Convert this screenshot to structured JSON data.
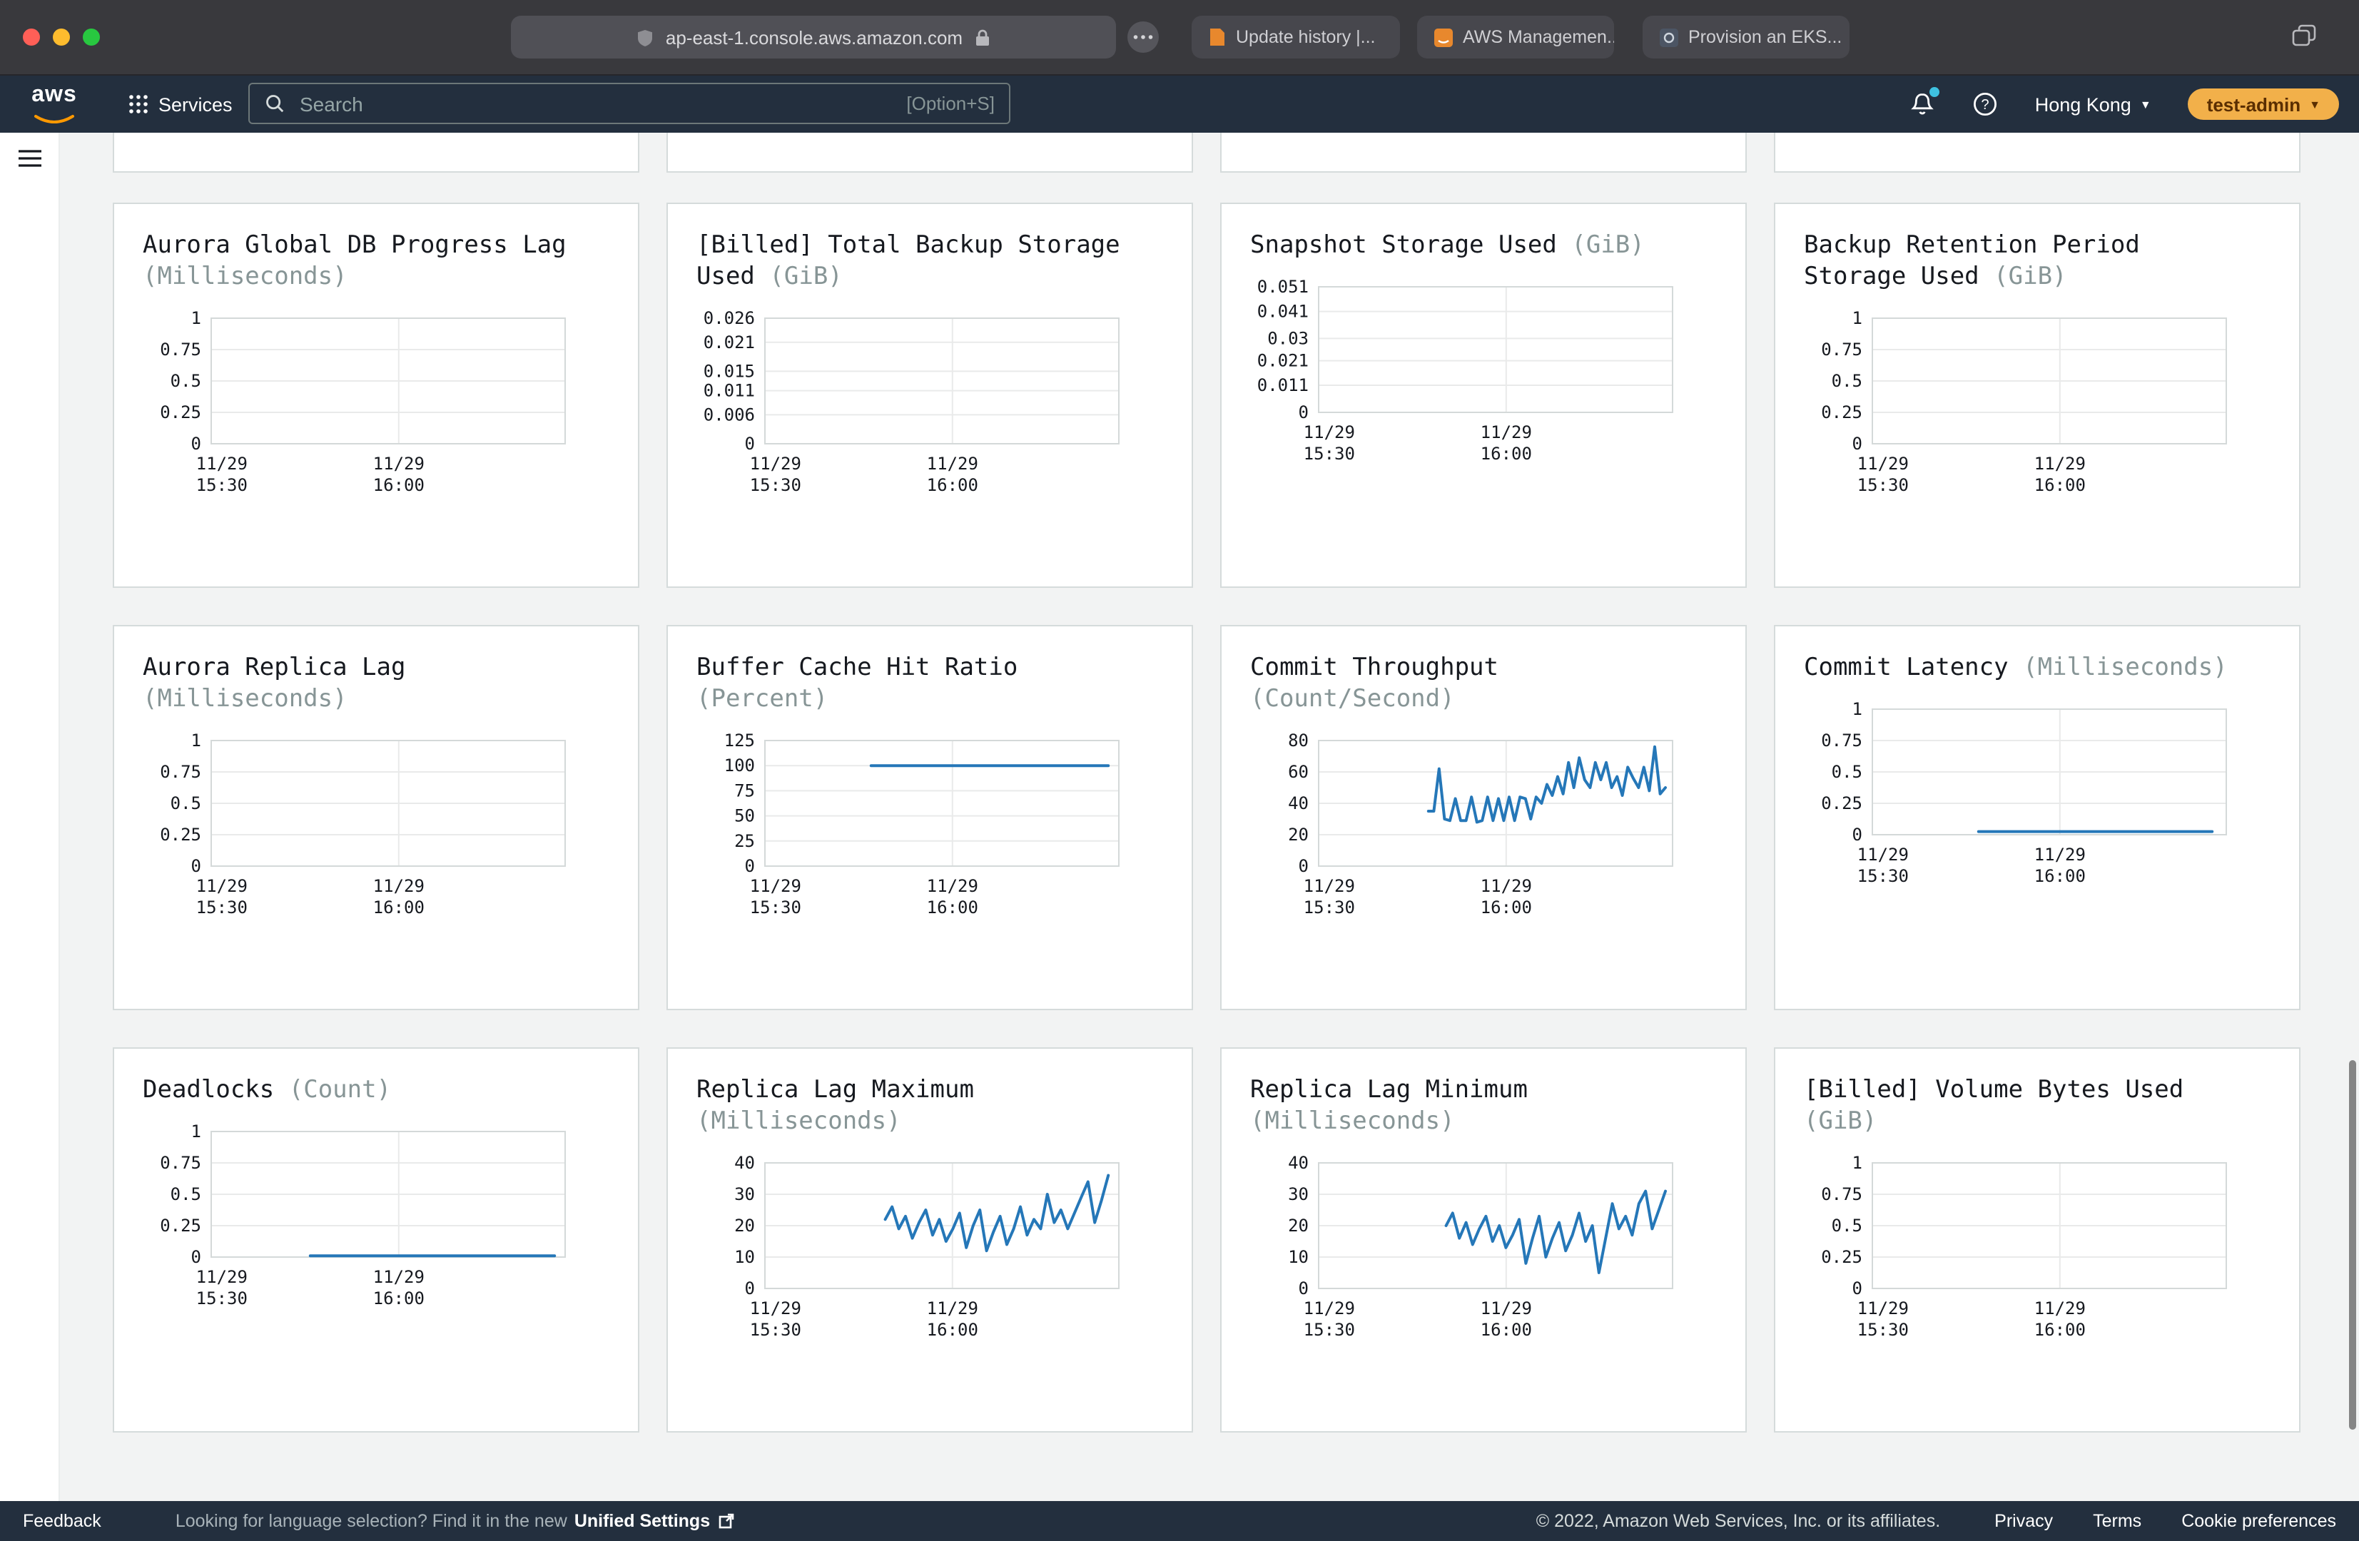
{
  "browser": {
    "url": "ap-east-1.console.aws.amazon.com",
    "tabs": [
      {
        "label": "Update history |..."
      },
      {
        "label": "AWS Managemen..."
      },
      {
        "label": "Provision an EKS..."
      }
    ]
  },
  "header": {
    "logo": "aws",
    "services_label": "Services",
    "search_placeholder": "Search",
    "search_shortcut": "[Option+S]",
    "region": "Hong Kong",
    "account": "test-admin"
  },
  "footer": {
    "feedback_label": "Feedback",
    "language_text": "Looking for language selection? Find it in the new",
    "language_link": "Unified Settings",
    "copyright": "© 2022, Amazon Web Services, Inc. or its affiliates.",
    "links": [
      {
        "label": "Privacy"
      },
      {
        "label": "Terms"
      },
      {
        "label": "Cookie preferences"
      }
    ]
  },
  "colors": {
    "header_bg": "#232f3e",
    "page_bg": "#f2f3f3",
    "card_border": "#d5dbdb",
    "chart_line": "#2577b8",
    "grid_line": "#e9eaea",
    "plot_border": "#d4d9d9",
    "unit_color": "#879596",
    "accent_orange": "#ff9900",
    "account_pill_bg": "#f2b04a",
    "account_pill_text": "#5a2e00"
  },
  "chart_data": [
    {
      "title": "Aurora Global DB Progress Lag",
      "unit": "(Milliseconds)",
      "type": "line",
      "ylim": [
        0,
        1
      ],
      "y_ticks": [
        0,
        0.25,
        0.5,
        0.75,
        1
      ],
      "x_ticks": [
        {
          "pos": 0.03,
          "lines": [
            "11/29",
            "15:30"
          ]
        },
        {
          "pos": 0.53,
          "lines": [
            "11/29",
            "16:00"
          ]
        }
      ],
      "series": []
    },
    {
      "title": "[Billed] Total Backup Storage Used",
      "unit": "(GiB)",
      "type": "line",
      "ylim": [
        0,
        0.026
      ],
      "y_ticks": [
        0,
        0.006,
        0.011,
        0.015,
        0.021,
        0.026
      ],
      "x_ticks": [
        {
          "pos": 0.03,
          "lines": [
            "11/29",
            "15:30"
          ]
        },
        {
          "pos": 0.53,
          "lines": [
            "11/29",
            "16:00"
          ]
        }
      ],
      "series": []
    },
    {
      "title": "Snapshot Storage Used",
      "unit": "(GiB)",
      "type": "line",
      "ylim": [
        0,
        0.051
      ],
      "y_ticks": [
        0,
        0.011,
        0.021,
        0.03,
        0.041,
        0.051
      ],
      "x_ticks": [
        {
          "pos": 0.03,
          "lines": [
            "11/29",
            "15:30"
          ]
        },
        {
          "pos": 0.53,
          "lines": [
            "11/29",
            "16:00"
          ]
        }
      ],
      "series": []
    },
    {
      "title": "Backup Retention Period Storage Used",
      "unit": "(GiB)",
      "type": "line",
      "ylim": [
        0,
        1
      ],
      "y_ticks": [
        0,
        0.25,
        0.5,
        0.75,
        1
      ],
      "x_ticks": [
        {
          "pos": 0.03,
          "lines": [
            "11/29",
            "15:30"
          ]
        },
        {
          "pos": 0.53,
          "lines": [
            "11/29",
            "16:00"
          ]
        }
      ],
      "series": []
    },
    {
      "title": "Aurora Replica Lag",
      "unit": "(Milliseconds)",
      "type": "line",
      "ylim": [
        0,
        1
      ],
      "y_ticks": [
        0,
        0.25,
        0.5,
        0.75,
        1
      ],
      "x_ticks": [
        {
          "pos": 0.03,
          "lines": [
            "11/29",
            "15:30"
          ]
        },
        {
          "pos": 0.53,
          "lines": [
            "11/29",
            "16:00"
          ]
        }
      ],
      "series": []
    },
    {
      "title": "Buffer Cache Hit Ratio",
      "unit": "(Percent)",
      "type": "line",
      "ylim": [
        0,
        125
      ],
      "y_ticks": [
        0,
        25,
        50,
        75,
        100,
        125
      ],
      "x_ticks": [
        {
          "pos": 0.03,
          "lines": [
            "11/29",
            "15:30"
          ]
        },
        {
          "pos": 0.53,
          "lines": [
            "11/29",
            "16:00"
          ]
        }
      ],
      "series": [
        {
          "name": "BufferCacheHitRatio",
          "span": [
            0.3,
            0.97
          ],
          "values": [
            100,
            100
          ]
        }
      ]
    },
    {
      "title": "Commit Throughput",
      "unit": "(Count/Second)",
      "type": "line",
      "ylim": [
        0,
        80
      ],
      "y_ticks": [
        0,
        20,
        40,
        60,
        80
      ],
      "x_ticks": [
        {
          "pos": 0.03,
          "lines": [
            "11/29",
            "15:30"
          ]
        },
        {
          "pos": 0.53,
          "lines": [
            "11/29",
            "16:00"
          ]
        }
      ],
      "series": [
        {
          "name": "CommitThroughput",
          "span": [
            0.31,
            0.98
          ],
          "values": [
            35,
            35,
            62,
            30,
            29,
            43,
            29,
            29,
            44,
            28,
            29,
            44,
            29,
            43,
            29,
            44,
            29,
            44,
            43,
            30,
            44,
            40,
            52,
            45,
            57,
            46,
            66,
            50,
            69,
            55,
            50,
            66,
            55,
            66,
            50,
            57,
            45,
            63,
            56,
            50,
            63,
            48,
            76,
            46,
            50
          ]
        }
      ]
    },
    {
      "title": "Commit Latency",
      "unit": "(Milliseconds)",
      "type": "line",
      "ylim": [
        0,
        1
      ],
      "y_ticks": [
        0,
        0.25,
        0.5,
        0.75,
        1
      ],
      "x_ticks": [
        {
          "pos": 0.03,
          "lines": [
            "11/29",
            "15:30"
          ]
        },
        {
          "pos": 0.53,
          "lines": [
            "11/29",
            "16:00"
          ]
        }
      ],
      "series": [
        {
          "name": "CommitLatency",
          "span": [
            0.3,
            0.96
          ],
          "values": [
            0.025,
            0.025
          ]
        }
      ]
    },
    {
      "title": "Deadlocks",
      "unit": "(Count)",
      "type": "line",
      "ylim": [
        0,
        1
      ],
      "y_ticks": [
        0,
        0.25,
        0.5,
        0.75,
        1
      ],
      "x_ticks": [
        {
          "pos": 0.03,
          "lines": [
            "11/29",
            "15:30"
          ]
        },
        {
          "pos": 0.53,
          "lines": [
            "11/29",
            "16:00"
          ]
        }
      ],
      "series": [
        {
          "name": "Deadlocks",
          "span": [
            0.28,
            0.97
          ],
          "values": [
            0.01,
            0.01
          ]
        }
      ]
    },
    {
      "title": "Replica Lag Maximum",
      "unit": "(Milliseconds)",
      "type": "line",
      "ylim": [
        0,
        40
      ],
      "y_ticks": [
        0,
        10,
        20,
        30,
        40
      ],
      "x_ticks": [
        {
          "pos": 0.03,
          "lines": [
            "11/29",
            "15:30"
          ]
        },
        {
          "pos": 0.53,
          "lines": [
            "11/29",
            "16:00"
          ]
        }
      ],
      "series": [
        {
          "name": "ReplicaLagMaximum",
          "span": [
            0.34,
            0.97
          ],
          "values": [
            22,
            26,
            19,
            23,
            16,
            21,
            25,
            17,
            22,
            15,
            19,
            24,
            13,
            20,
            25,
            12,
            18,
            23,
            14,
            19,
            26,
            17,
            22,
            19,
            30,
            21,
            25,
            19,
            24,
            29,
            34,
            21,
            28,
            36
          ]
        }
      ]
    },
    {
      "title": "Replica Lag Minimum",
      "unit": "(Milliseconds)",
      "type": "line",
      "ylim": [
        0,
        40
      ],
      "y_ticks": [
        0,
        10,
        20,
        30,
        40
      ],
      "x_ticks": [
        {
          "pos": 0.03,
          "lines": [
            "11/29",
            "15:30"
          ]
        },
        {
          "pos": 0.53,
          "lines": [
            "11/29",
            "16:00"
          ]
        }
      ],
      "series": [
        {
          "name": "ReplicaLagMinimum",
          "span": [
            0.36,
            0.98
          ],
          "values": [
            20,
            24,
            16,
            21,
            14,
            19,
            23,
            15,
            20,
            13,
            17,
            22,
            8,
            16,
            23,
            10,
            16,
            21,
            12,
            17,
            24,
            15,
            20,
            5,
            16,
            27,
            19,
            23,
            17,
            27,
            31,
            19,
            25,
            31
          ]
        }
      ]
    },
    {
      "title": "[Billed] Volume Bytes Used",
      "unit": "(GiB)",
      "type": "line",
      "ylim": [
        0,
        1
      ],
      "y_ticks": [
        0,
        0.25,
        0.5,
        0.75,
        1
      ],
      "x_ticks": [
        {
          "pos": 0.03,
          "lines": [
            "11/29",
            "15:30"
          ]
        },
        {
          "pos": 0.53,
          "lines": [
            "11/29",
            "16:00"
          ]
        }
      ],
      "series": []
    }
  ]
}
